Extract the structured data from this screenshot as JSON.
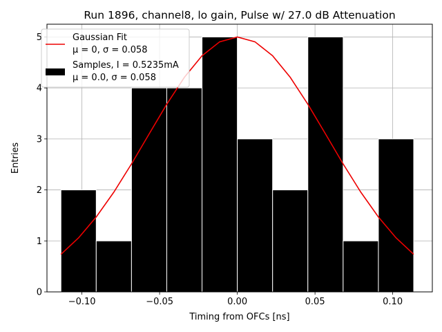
{
  "chart_data": {
    "type": "bar",
    "title": "Run 1896, channel8, lo gain, Pulse w/ 27.0 dB Attenuation",
    "xlabel": "Timing from OFCs [ns]",
    "ylabel": "Entries",
    "xlim": [
      -0.1225,
      0.1255
    ],
    "ylim": [
      0,
      5.25
    ],
    "grid": true,
    "xticks": [
      -0.1,
      -0.05,
      0.0,
      0.05,
      0.1
    ],
    "xtick_labels": [
      "−0.10",
      "−0.05",
      "0.00",
      "0.05",
      "0.10"
    ],
    "yticks": [
      0,
      1,
      2,
      3,
      4,
      5
    ],
    "ytick_labels": [
      "0",
      "1",
      "2",
      "3",
      "4",
      "5"
    ],
    "histogram": {
      "name": "Samples",
      "bin_edges": [
        -0.1135,
        -0.0908,
        -0.0681,
        -0.0454,
        -0.0227,
        0.0,
        0.0227,
        0.0454,
        0.0681,
        0.0908,
        0.1135
      ],
      "counts": [
        2,
        1,
        4,
        4,
        5,
        3,
        2,
        5,
        1,
        3
      ],
      "color": "#000000",
      "edge_color": "#ffffff"
    },
    "fit": {
      "name": "Gaussian Fit",
      "mu": 0.0,
      "sigma": 0.058,
      "amplitude": 5.0,
      "x_range": [
        -0.1135,
        0.1135
      ],
      "color": "#ee0000"
    },
    "legend": {
      "position": "top-left",
      "entries": [
        {
          "label_line1": "Gaussian Fit",
          "label_line2": "μ = 0, σ = 0.058",
          "kind": "line",
          "color": "#ee0000"
        },
        {
          "label_line1": "Samples, I = 0.5235mA",
          "label_line2": "μ = 0.0, σ = 0.058",
          "kind": "patch",
          "color": "#000000"
        }
      ]
    }
  }
}
